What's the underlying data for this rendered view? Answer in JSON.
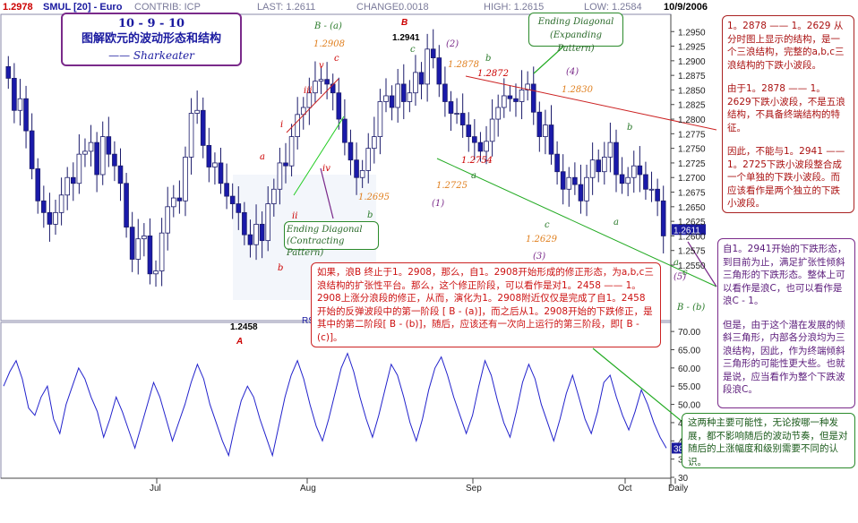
{
  "header": {
    "corner_value": "1.2978",
    "symbol": "SMUL [20] - Euro",
    "contrib": "CONTRIB: ICP",
    "last": "LAST: 1.2611",
    "change_label": "CHANGE:",
    "change_value": "0.0018",
    "high": "HIGH: 1.2615",
    "low": "LOW: 1.2584",
    "date": "10/9/2006"
  },
  "title_box": {
    "line1": "10 - 9 - 10",
    "line2": "图解欧元的波动形态和结构",
    "line3": "—— Sharkeater"
  },
  "notes": {
    "top_right": [
      "1。2878 —— 1。2629 从分时图上显示的结构，是一个三浪结构，完整的a,b,c三浪结构的下跌小波段。",
      "由于1。2878 —— 1。2629下跌小波段，不是五浪结构，不具备终端结构的特征。",
      "因此，不能与1。2941 ——1。2725下跌小波段整合成一个单独的下跌小波段。而应该看作是两个独立的下跌小波段。"
    ],
    "mid_right": [
      "自1。2941开始的下跌形态，到目前为止，满足扩张性倾斜三角形的下跌形态。整体上可以看作是浪C，也可以看作是浪C - 1。",
      "但是，由于这个潜在发展的倾斜三角形，内部各分浪均为三浪结构，因此，作为终端倾斜三角形的可能性更大些。也就是说，应当看作为整个下跌波段浪C。"
    ],
    "center": "如果，浪B 终止于1。2908，那么，自1。2908开始形成的修正形态，为a,b,c三浪结构的扩张性平台。那么，这个修正阶段，可以看作是对1。2458 —— 1。2908上涨分浪段的修正，从而，演化为1。2908附近仅仅是完成了自1。2458开始的反弹波段中的第一阶段 [ B - (a)]，而之后从1。2908开始的下跌修正，是其中的第二阶段[ B - (b)]，随后，应该还有一次向上运行的第三阶段，即[ B - (c)]。",
    "bottom_right": "这两种主要可能性，无论按哪一种发展，都不影响随后的波动节奏，但是对随后的上涨幅度和级别需要不同的认识。",
    "ending_expanding_1": "Ending    Diagonal",
    "ending_expanding_2": "(Expanding Pattern)",
    "ending_contracting_1": "Ending Diagonal",
    "ending_contracting_2": "(Contracting Pattern)"
  },
  "wave_labels": [
    {
      "t": "B - (a)",
      "c": "#2a7a2a"
    },
    {
      "t": "B",
      "c": "#cc0000"
    },
    {
      "t": "1.2941",
      "c": "#000000"
    },
    {
      "t": "1.2908",
      "c": "#e08020"
    },
    {
      "t": "(2)",
      "c": "#7a2a8a"
    },
    {
      "t": "1.2878",
      "c": "#e08020"
    },
    {
      "t": "1.2872",
      "c": "#cc0000"
    },
    {
      "t": "(4)",
      "c": "#7a2a8a"
    },
    {
      "t": "1.2830",
      "c": "#e08020"
    },
    {
      "t": "b",
      "c": "#2a7a2a"
    },
    {
      "t": "c",
      "c": "#2a7a2a"
    },
    {
      "t": "b",
      "c": "#2a7a2a"
    },
    {
      "t": "v",
      "c": "#cc0000"
    },
    {
      "t": "c",
      "c": "#cc0000"
    },
    {
      "t": "iii",
      "c": "#cc0000"
    },
    {
      "t": "i",
      "c": "#cc0000"
    },
    {
      "t": "a",
      "c": "#cc0000"
    },
    {
      "t": "iv",
      "c": "#cc0000"
    },
    {
      "t": "ii",
      "c": "#cc0000"
    },
    {
      "t": "b",
      "c": "#cc0000"
    },
    {
      "t": "a",
      "c": "#2a7a2a"
    },
    {
      "t": "1.2754",
      "c": "#cc0000"
    },
    {
      "t": "1.2725",
      "c": "#e08020"
    },
    {
      "t": "a",
      "c": "#2a7a2a"
    },
    {
      "t": "(1)",
      "c": "#7a2a8a"
    },
    {
      "t": "1.2695",
      "c": "#e08020"
    },
    {
      "t": "b",
      "c": "#2a7a2a"
    },
    {
      "t": "c",
      "c": "#2a7a2a"
    },
    {
      "t": "1.2629",
      "c": "#e08020"
    },
    {
      "t": "a",
      "c": "#2a7a2a"
    },
    {
      "t": "(3)",
      "c": "#7a2a8a"
    },
    {
      "t": "c",
      "c": "#2a7a2a"
    },
    {
      "t": "(5)",
      "c": "#7a2a8a"
    },
    {
      "t": "B - (b)",
      "c": "#2a7a2a"
    },
    {
      "t": "1.2458",
      "c": "#000000"
    },
    {
      "t": "A",
      "c": "#cc0000"
    }
  ],
  "chart_data": [
    {
      "type": "candlestick",
      "title": "SMUL [20] - Euro",
      "ylim": [
        1.2458,
        1.2978
      ],
      "y_ticks": [
        "1.2950",
        "1.2925",
        "1.2900",
        "1.2875",
        "1.2850",
        "1.2825",
        "1.2800",
        "1.2775",
        "1.2750",
        "1.2725",
        "1.2700",
        "1.2675",
        "1.2650",
        "1.2625",
        "1.2600",
        "1.2575",
        "1.2550"
      ],
      "current_price": "1.2611",
      "x_ticks": [
        "Jul",
        "Aug",
        "Sep",
        "Oct",
        "Daily"
      ],
      "close": [
        1.287,
        1.2815,
        1.2835,
        1.278,
        1.2715,
        1.266,
        1.264,
        1.262,
        1.264,
        1.267,
        1.27,
        1.269,
        1.274,
        1.2745,
        1.276,
        1.2705,
        1.277,
        1.274,
        1.272,
        1.269,
        1.2615,
        1.256,
        1.2595,
        1.26,
        1.2535,
        1.254,
        1.2605,
        1.265,
        1.2665,
        1.266,
        1.2735,
        1.281,
        1.2815,
        1.2755,
        1.2718,
        1.2725,
        1.269,
        1.2668,
        1.2655,
        1.264,
        1.2602,
        1.2585,
        1.262,
        1.2592,
        1.2655,
        1.268,
        1.2725,
        1.272,
        1.277,
        1.2808,
        1.282,
        1.2845,
        1.2865,
        1.2868,
        1.286,
        1.2845,
        1.28,
        1.276,
        1.273,
        1.27,
        1.2712,
        1.275,
        1.277,
        1.283,
        1.284,
        1.282,
        1.286,
        1.283,
        1.2845,
        1.288,
        1.286,
        1.292,
        1.2905,
        1.286,
        1.283,
        1.281,
        1.281,
        1.279,
        1.277,
        1.276,
        1.2745,
        1.2762,
        1.28,
        1.282,
        1.284,
        1.2835,
        1.283,
        1.285,
        1.286,
        1.2812,
        1.277,
        1.279,
        1.274,
        1.271,
        1.268,
        1.27,
        1.2688,
        1.266,
        1.27,
        1.273,
        1.271,
        1.2735,
        1.276,
        1.2705,
        1.269,
        1.27,
        1.272,
        1.2705,
        1.268,
        1.268,
        1.266,
        1.26
      ],
      "current": 1.2611
    },
    {
      "type": "line",
      "title": "RSI",
      "ylim": [
        30,
        72
      ],
      "y_ticks": [
        "70.00",
        "65.00",
        "60.00",
        "55.00",
        "50.00",
        "45.00",
        "40.00",
        "35.00",
        "30"
      ],
      "current_value": "38",
      "values": [
        55,
        59,
        62,
        57,
        49,
        47,
        52,
        55,
        46,
        42,
        50,
        55,
        60,
        57,
        52,
        48,
        41,
        46,
        52,
        48,
        43,
        38,
        44,
        50,
        56,
        52,
        46,
        40,
        45,
        50,
        56,
        61,
        57,
        50,
        45,
        40,
        36,
        44,
        51,
        55,
        52,
        46,
        41,
        36,
        44,
        52,
        58,
        62,
        57,
        50,
        44,
        40,
        46,
        53,
        60,
        64,
        59,
        52,
        46,
        41,
        47,
        54,
        61,
        58,
        52,
        45,
        40,
        46,
        54,
        60,
        63,
        58,
        52,
        47,
        42,
        47,
        55,
        62,
        58,
        51,
        45,
        41,
        48,
        56,
        61,
        57,
        50,
        45,
        40,
        46,
        53,
        58,
        52,
        46,
        42,
        48,
        56,
        58,
        52,
        47,
        43,
        48,
        54,
        50,
        45,
        41,
        38
      ]
    }
  ]
}
